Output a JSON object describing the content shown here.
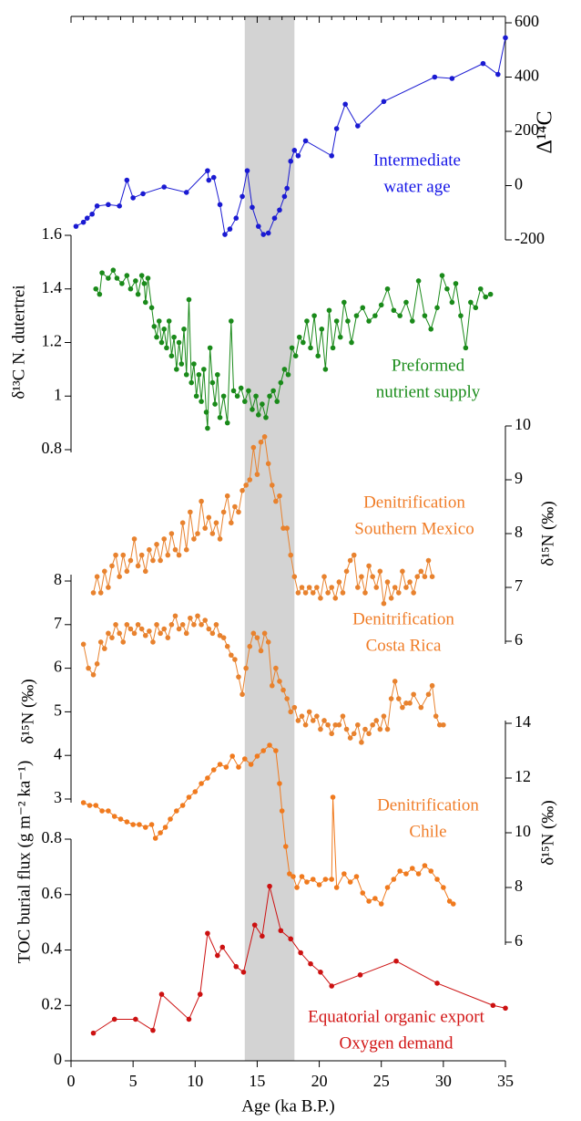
{
  "chart_data": [
    {
      "type": "line",
      "ylabel": "Δ¹⁴C",
      "annotation": [
        "Intermediate",
        "water age"
      ],
      "color": "#1a1ad2",
      "text_color": "#1414e6",
      "ylim": [
        -200,
        600
      ],
      "yticks": [
        -200,
        0,
        200,
        400,
        600
      ],
      "axis_side": "right",
      "xticks": [
        0,
        1,
        2,
        3,
        4,
        5,
        6,
        7,
        8,
        9,
        10,
        11,
        12,
        13,
        14,
        15,
        16,
        17,
        18,
        19,
        20,
        21,
        22,
        23,
        24,
        25,
        26,
        27,
        28,
        29,
        30,
        31,
        32,
        33,
        34,
        35
      ],
      "x": [
        0.4,
        1.0,
        1.3,
        1.7,
        2.1,
        3.0,
        3.9,
        4.5,
        5.0,
        5.8,
        7.5,
        9.3,
        11.0,
        11.1,
        11.5,
        12.0,
        12.4,
        12.8,
        13.3,
        13.8,
        14.2,
        14.6,
        15.1,
        15.5,
        15.9,
        16.4,
        16.8,
        17.2,
        17.4,
        17.7,
        18.0,
        18.3,
        18.9,
        21.0,
        21.4,
        22.1,
        23.1,
        25.2,
        29.3,
        30.7,
        33.2,
        34.4,
        35.0
      ],
      "values": [
        -150,
        -135,
        -120,
        -105,
        -75,
        -70,
        -75,
        20,
        -45,
        -30,
        -5,
        -25,
        55,
        20,
        30,
        -70,
        -180,
        -160,
        -120,
        -40,
        55,
        -80,
        -150,
        -180,
        -175,
        -120,
        -90,
        -40,
        -10,
        90,
        130,
        110,
        165,
        110,
        210,
        300,
        220,
        310,
        400,
        395,
        450,
        410,
        545
      ]
    },
    {
      "type": "line",
      "ylabel": "δ¹³C N. dutertrei",
      "annotation": [
        "Preformed",
        "nutrient supply"
      ],
      "color": "#1a8a1a",
      "text_color": "#1a8c1a",
      "ylim": [
        0.8,
        1.6
      ],
      "yticks": [
        0.8,
        1,
        1.2,
        1.4,
        1.6
      ],
      "axis_side": "left",
      "x": [
        2.0,
        2.3,
        2.5,
        3.0,
        3.4,
        3.7,
        4.1,
        4.5,
        4.8,
        5.2,
        5.4,
        5.7,
        5.9,
        6.0,
        6.2,
        6.5,
        6.7,
        6.9,
        7.1,
        7.3,
        7.5,
        7.7,
        7.9,
        8.1,
        8.3,
        8.5,
        8.7,
        8.9,
        9.1,
        9.3,
        9.5,
        9.7,
        9.9,
        10.1,
        10.3,
        10.5,
        10.7,
        10.9,
        11.0,
        11.2,
        11.4,
        11.6,
        11.8,
        12.0,
        12.3,
        12.6,
        12.9,
        13.1,
        13.4,
        13.7,
        14.0,
        14.3,
        14.6,
        14.9,
        15.1,
        15.4,
        15.7,
        16.0,
        16.3,
        16.6,
        16.9,
        17.2,
        17.5,
        17.8,
        18.1,
        18.4,
        18.7,
        19.0,
        19.3,
        19.6,
        19.9,
        20.2,
        20.5,
        20.8,
        21.1,
        21.4,
        21.7,
        22.0,
        22.3,
        22.6,
        23.0,
        23.5,
        24.0,
        24.5,
        25.0,
        25.5,
        26.0,
        26.5,
        27.0,
        27.5,
        28.0,
        28.5,
        29.0,
        29.5,
        29.9,
        30.3,
        30.7,
        31.0,
        31.4,
        31.8,
        32.2,
        32.6,
        33.0,
        33.4,
        33.8
      ],
      "values": [
        1.4,
        1.38,
        1.46,
        1.44,
        1.47,
        1.44,
        1.42,
        1.45,
        1.4,
        1.43,
        1.38,
        1.45,
        1.42,
        1.35,
        1.44,
        1.33,
        1.26,
        1.22,
        1.28,
        1.2,
        1.25,
        1.18,
        1.28,
        1.15,
        1.22,
        1.1,
        1.2,
        1.12,
        1.25,
        1.08,
        1.36,
        1.05,
        1.12,
        1.0,
        1.08,
        0.98,
        1.1,
        0.94,
        0.88,
        1.18,
        1.05,
        0.97,
        1.08,
        0.92,
        1.0,
        0.9,
        1.28,
        1.02,
        1.0,
        1.03,
        0.98,
        1.02,
        0.95,
        1.0,
        0.93,
        0.97,
        0.92,
        1.0,
        1.02,
        0.98,
        1.05,
        1.1,
        1.08,
        1.18,
        1.15,
        1.22,
        1.2,
        1.28,
        1.18,
        1.3,
        1.15,
        1.25,
        1.1,
        1.32,
        1.18,
        1.28,
        1.22,
        1.35,
        1.28,
        1.2,
        1.3,
        1.33,
        1.28,
        1.3,
        1.34,
        1.4,
        1.32,
        1.3,
        1.35,
        1.28,
        1.43,
        1.3,
        1.25,
        1.33,
        1.45,
        1.4,
        1.35,
        1.42,
        1.3,
        1.18,
        1.35,
        1.33,
        1.4,
        1.37,
        1.38
      ]
    },
    {
      "type": "line",
      "ylabel": "δ¹⁵N (‰)",
      "annotation": [
        "Denitrification",
        "Southern Mexico"
      ],
      "color": "#e8822e",
      "text_color": "#f07d28",
      "ylim": [
        6,
        10
      ],
      "yticks": [
        6,
        7,
        8,
        9,
        10
      ],
      "axis_side": "right",
      "x": [
        1.8,
        2.1,
        2.4,
        2.7,
        3.0,
        3.3,
        3.6,
        3.9,
        4.2,
        4.5,
        4.8,
        5.1,
        5.4,
        5.7,
        6.0,
        6.3,
        6.6,
        6.9,
        7.2,
        7.5,
        7.8,
        8.1,
        8.4,
        8.7,
        9.0,
        9.3,
        9.6,
        9.9,
        10.2,
        10.5,
        10.8,
        11.1,
        11.4,
        11.7,
        12.0,
        12.3,
        12.6,
        12.9,
        13.2,
        13.5,
        13.8,
        14.1,
        14.4,
        14.7,
        15.0,
        15.3,
        15.6,
        15.9,
        16.2,
        16.5,
        16.8,
        17.1,
        17.4,
        17.7,
        18.0,
        18.3,
        18.6,
        18.9,
        19.2,
        19.5,
        19.8,
        20.1,
        20.4,
        20.7,
        21.0,
        21.3,
        21.6,
        21.9,
        22.2,
        22.5,
        22.8,
        23.1,
        23.4,
        23.7,
        24.0,
        24.3,
        24.6,
        24.9,
        25.2,
        25.5,
        25.8,
        26.1,
        26.4,
        26.7,
        27.0,
        27.3,
        27.6,
        27.9,
        28.2,
        28.5,
        28.8,
        29.1
      ],
      "values": [
        6.9,
        7.2,
        6.9,
        7.3,
        7.0,
        7.4,
        7.6,
        7.2,
        7.6,
        7.3,
        7.5,
        7.9,
        7.4,
        7.6,
        7.3,
        7.7,
        7.5,
        7.8,
        7.5,
        7.9,
        7.6,
        8.0,
        7.7,
        7.6,
        8.2,
        7.7,
        8.4,
        7.9,
        8.0,
        8.6,
        8.1,
        8.3,
        8.0,
        8.2,
        7.9,
        8.4,
        8.7,
        8.2,
        8.5,
        8.4,
        8.8,
        8.9,
        9.0,
        9.6,
        9.1,
        9.7,
        9.8,
        9.3,
        8.9,
        8.6,
        8.7,
        8.1,
        8.1,
        7.6,
        7.2,
        6.9,
        7.0,
        6.9,
        7.0,
        6.9,
        7.0,
        6.8,
        7.2,
        6.9,
        7.0,
        6.8,
        7.1,
        6.9,
        7.3,
        7.5,
        7.6,
        7.0,
        7.2,
        6.9,
        7.4,
        7.2,
        7.0,
        7.3,
        6.7,
        7.1,
        6.8,
        7.0,
        6.9,
        7.3,
        7.0,
        7.1,
        6.9,
        7.2,
        7.3,
        7.2,
        7.5,
        7.2
      ]
    },
    {
      "type": "line",
      "ylabel": "δ¹⁵N (‰)",
      "annotation": [
        "Denitrification",
        "Costa Rica"
      ],
      "color": "#e8822e",
      "text_color": "#f07d28",
      "ylim": [
        3,
        8
      ],
      "yticks": [
        3,
        4,
        5,
        6,
        7,
        8
      ],
      "axis_side": "left",
      "x": [
        1.0,
        1.4,
        1.8,
        2.1,
        2.4,
        2.7,
        3.0,
        3.3,
        3.6,
        3.9,
        4.2,
        4.5,
        4.8,
        5.1,
        5.4,
        5.7,
        6.0,
        6.3,
        6.6,
        6.9,
        7.2,
        7.5,
        7.8,
        8.1,
        8.4,
        8.7,
        9.0,
        9.3,
        9.6,
        9.9,
        10.2,
        10.5,
        10.8,
        11.1,
        11.4,
        11.7,
        12.0,
        12.3,
        12.6,
        12.9,
        13.2,
        13.5,
        13.8,
        14.1,
        14.4,
        14.7,
        15.0,
        15.3,
        15.6,
        15.9,
        16.2,
        16.5,
        16.8,
        17.1,
        17.4,
        17.7,
        18.0,
        18.3,
        18.6,
        18.9,
        19.2,
        19.5,
        19.8,
        20.1,
        20.4,
        20.7,
        21.0,
        21.3,
        21.6,
        21.9,
        22.2,
        22.5,
        22.8,
        23.1,
        23.4,
        23.7,
        24.0,
        24.3,
        24.6,
        24.9,
        25.2,
        25.5,
        25.8,
        26.1,
        26.4,
        26.7,
        27.0,
        27.3,
        27.6,
        28.2,
        28.8,
        29.1,
        29.4,
        29.7,
        30.0
      ],
      "values": [
        6.55,
        6.0,
        5.85,
        6.1,
        6.6,
        6.45,
        6.8,
        6.7,
        7.0,
        6.8,
        6.6,
        7.0,
        6.9,
        6.8,
        7.0,
        6.9,
        6.75,
        6.85,
        6.6,
        7.0,
        6.8,
        6.9,
        6.7,
        7.0,
        7.2,
        6.9,
        7.0,
        6.8,
        7.15,
        7.0,
        7.2,
        7.0,
        7.1,
        6.9,
        6.8,
        7.0,
        6.75,
        6.7,
        6.5,
        6.3,
        6.2,
        5.8,
        5.4,
        6.0,
        6.5,
        6.8,
        6.7,
        6.4,
        6.8,
        6.6,
        5.6,
        6.0,
        5.7,
        5.5,
        5.3,
        5.0,
        5.1,
        4.8,
        4.9,
        4.7,
        5.0,
        4.8,
        4.9,
        4.6,
        4.8,
        4.7,
        4.5,
        4.7,
        4.7,
        4.9,
        4.6,
        4.4,
        4.5,
        4.7,
        4.3,
        4.6,
        4.5,
        4.7,
        4.8,
        4.6,
        4.9,
        4.6,
        5.3,
        5.7,
        5.3,
        5.1,
        5.2,
        5.2,
        5.4,
        5.1,
        5.4,
        5.6,
        4.9,
        4.7,
        4.7
      ]
    },
    {
      "type": "line",
      "ylabel": "δ¹⁵N (‰)",
      "annotation": [
        "Denitrification",
        "Chile"
      ],
      "color": "#f07a1e",
      "text_color": "#f07d28",
      "ylim": [
        6,
        14
      ],
      "yticks": [
        6,
        8,
        10,
        12,
        14
      ],
      "axis_side": "right",
      "x": [
        1.0,
        1.5,
        2.0,
        2.5,
        3.0,
        3.5,
        4.0,
        4.5,
        5.0,
        5.5,
        6.0,
        6.5,
        6.8,
        7.2,
        7.6,
        8.0,
        8.5,
        9.0,
        9.5,
        10.0,
        10.5,
        11.0,
        11.5,
        12.0,
        12.5,
        13.0,
        13.5,
        14.0,
        14.5,
        15.0,
        15.5,
        16.0,
        16.5,
        16.8,
        17.0,
        17.3,
        17.6,
        17.9,
        18.2,
        18.6,
        19.0,
        19.5,
        20.0,
        20.5,
        21.0,
        21.1,
        21.4,
        22.0,
        22.5,
        23.0,
        23.5,
        24.0,
        24.5,
        25.0,
        25.5,
        26.0,
        26.5,
        27.0,
        27.5,
        28.0,
        28.5,
        29.0,
        29.5,
        30.0,
        30.5,
        30.8
      ],
      "values": [
        11.1,
        11.0,
        11.0,
        10.8,
        10.8,
        10.6,
        10.5,
        10.4,
        10.3,
        10.3,
        10.2,
        10.3,
        9.8,
        10.0,
        10.2,
        10.5,
        10.8,
        11.0,
        11.3,
        11.5,
        11.8,
        12.0,
        12.3,
        12.5,
        12.4,
        12.8,
        12.4,
        12.7,
        12.5,
        12.8,
        13.0,
        13.2,
        13.0,
        11.8,
        10.8,
        9.5,
        8.5,
        8.4,
        8.0,
        8.4,
        8.2,
        8.3,
        8.1,
        8.3,
        8.3,
        11.3,
        8.0,
        8.5,
        8.2,
        8.4,
        7.8,
        7.5,
        7.6,
        7.4,
        8.0,
        8.3,
        8.6,
        8.5,
        8.7,
        8.5,
        8.8,
        8.6,
        8.3,
        8.0,
        7.5,
        7.4
      ]
    },
    {
      "type": "line",
      "ylabel": "TOC burial flux (g m⁻² ka⁻¹)",
      "annotation": [
        "Equatorial organic export",
        "Oxygen demand"
      ],
      "color": "#cc1111",
      "text_color": "#d21414",
      "ylim": [
        0,
        0.8
      ],
      "yticks": [
        0,
        0.2,
        0.4,
        0.6,
        0.8
      ],
      "axis_side": "left",
      "xlabel": "Age (ka B.P.)",
      "xlim": [
        0,
        35
      ],
      "xticks": [
        0,
        5,
        10,
        15,
        20,
        25,
        30,
        35
      ],
      "span": [
        14,
        18
      ],
      "span_color": "#d3d3d3",
      "x": [
        1.8,
        3.5,
        5.2,
        6.6,
        7.3,
        9.5,
        10.4,
        11.0,
        11.8,
        12.2,
        13.3,
        13.9,
        14.8,
        15.4,
        16.0,
        16.9,
        17.7,
        18.5,
        19.3,
        20.1,
        21.0,
        23.3,
        26.2,
        29.5,
        34.0,
        35.0
      ],
      "values": [
        0.1,
        0.15,
        0.15,
        0.11,
        0.24,
        0.15,
        0.24,
        0.46,
        0.38,
        0.41,
        0.34,
        0.32,
        0.49,
        0.45,
        0.63,
        0.47,
        0.44,
        0.39,
        0.35,
        0.32,
        0.27,
        0.31,
        0.36,
        0.28,
        0.2,
        0.19
      ]
    }
  ]
}
